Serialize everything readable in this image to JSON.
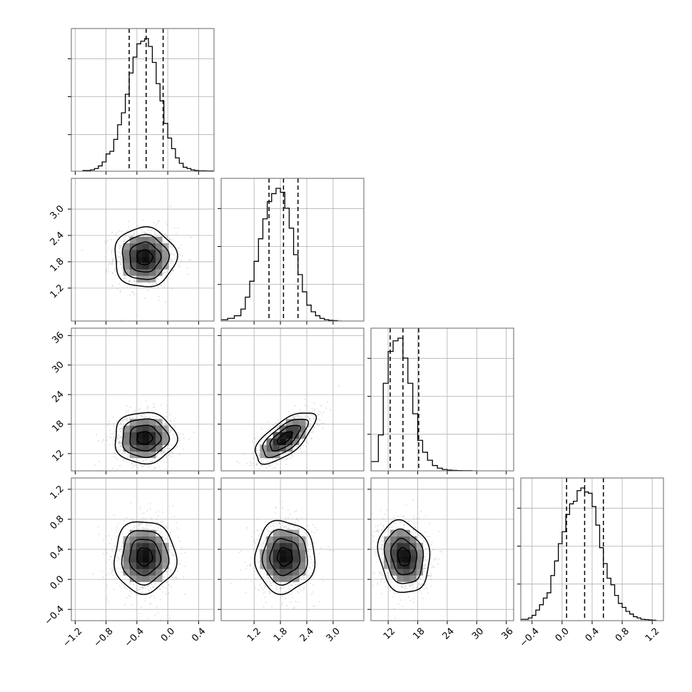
{
  "chart_data": {
    "type": "corner",
    "grid": true,
    "colors": {
      "hist": "#000000",
      "quantile": "#000000",
      "points": "#9a9a9a",
      "frame": "#666666",
      "grid": "#b0b0b0"
    },
    "quantiles": [
      0.16,
      0.5,
      0.84
    ],
    "params": [
      {
        "lim": [
          -1.25,
          0.6
        ],
        "ticks": [
          -1.2,
          -0.8,
          -0.4,
          0.0,
          0.4
        ],
        "tick_labels": [
          "−1.2",
          "−0.8",
          "−0.4",
          "0.0",
          "0.4"
        ],
        "mean": -0.3,
        "sd": 0.2,
        "quantile_values": [
          -0.5,
          -0.28,
          -0.06
        ],
        "hist_edges": [
          -1.1,
          -1.0,
          -0.95,
          -0.9,
          -0.85,
          -0.8,
          -0.75,
          -0.7,
          -0.65,
          -0.6,
          -0.55,
          -0.5,
          -0.45,
          -0.4,
          -0.35,
          -0.3,
          -0.25,
          -0.2,
          -0.15,
          -0.1,
          -0.05,
          0.0,
          0.05,
          0.1,
          0.15,
          0.2,
          0.25,
          0.3,
          0.35,
          0.4,
          0.5,
          0.6
        ],
        "hist_counts": [
          0.005,
          0.01,
          0.02,
          0.04,
          0.07,
          0.13,
          0.15,
          0.24,
          0.35,
          0.44,
          0.58,
          0.74,
          0.86,
          0.96,
          0.98,
          1.0,
          0.94,
          0.82,
          0.66,
          0.53,
          0.36,
          0.25,
          0.17,
          0.1,
          0.06,
          0.03,
          0.02,
          0.01,
          0.005,
          0.003,
          0.002
        ]
      },
      {
        "lim": [
          0.45,
          3.7
        ],
        "ticks": [
          1.2,
          1.8,
          2.4,
          3.0
        ],
        "tick_labels": [
          "1.2",
          "1.8",
          "2.4",
          "3.0"
        ],
        "mean": 1.9,
        "sd": 0.34,
        "quantile_values": [
          1.54,
          1.87,
          2.2
        ],
        "hist_edges": [
          0.45,
          0.6,
          0.75,
          0.9,
          1.0,
          1.1,
          1.2,
          1.3,
          1.4,
          1.5,
          1.6,
          1.7,
          1.8,
          1.9,
          2.0,
          2.1,
          2.2,
          2.3,
          2.4,
          2.5,
          2.6,
          2.7,
          2.8,
          2.9,
          3.0,
          3.1,
          3.2
        ],
        "hist_counts": [
          0.01,
          0.02,
          0.04,
          0.09,
          0.18,
          0.3,
          0.45,
          0.62,
          0.77,
          0.9,
          0.96,
          1.0,
          0.97,
          0.85,
          0.7,
          0.5,
          0.35,
          0.22,
          0.12,
          0.07,
          0.04,
          0.02,
          0.01,
          0.005,
          0.003,
          0.0
        ]
      },
      {
        "lim": [
          8.5,
          37.5
        ],
        "ticks": [
          12,
          18,
          24,
          30,
          36
        ],
        "tick_labels": [
          "12",
          "18",
          "24",
          "30",
          "36"
        ],
        "mean": 15.2,
        "sd": 2.6,
        "quantile_values": [
          12.4,
          15.0,
          18.2
        ],
        "hist_edges": [
          8.5,
          10.0,
          11.0,
          12.0,
          13.0,
          14.0,
          15.0,
          16.0,
          17.0,
          18.0,
          19.0,
          20.0,
          21.0,
          22.0,
          23.0,
          24.0,
          25.0,
          26.0,
          27.0,
          28.0,
          29.0,
          30.0
        ],
        "hist_counts": [
          0.07,
          0.27,
          0.66,
          0.9,
          0.98,
          1.0,
          0.85,
          0.66,
          0.43,
          0.23,
          0.14,
          0.08,
          0.04,
          0.02,
          0.01,
          0.005,
          0.003,
          0.002,
          0.001,
          0.001,
          0.0
        ]
      },
      {
        "lim": [
          -0.55,
          1.35
        ],
        "ticks": [
          -0.4,
          0.0,
          0.4,
          0.8,
          1.2
        ],
        "tick_labels": [
          "−0.4",
          "0.0",
          "0.4",
          "0.8",
          "1.2"
        ],
        "mean": 0.3,
        "sd": 0.24,
        "quantile_values": [
          0.06,
          0.3,
          0.55
        ],
        "hist_edges": [
          -0.55,
          -0.45,
          -0.4,
          -0.35,
          -0.3,
          -0.25,
          -0.2,
          -0.15,
          -0.1,
          -0.05,
          0.0,
          0.05,
          0.1,
          0.15,
          0.2,
          0.25,
          0.3,
          0.35,
          0.4,
          0.45,
          0.5,
          0.55,
          0.6,
          0.65,
          0.7,
          0.75,
          0.8,
          0.85,
          0.9,
          0.95,
          1.0,
          1.05,
          1.1,
          1.15,
          1.2,
          1.25
        ],
        "hist_counts": [
          0.01,
          0.02,
          0.04,
          0.08,
          0.12,
          0.17,
          0.21,
          0.34,
          0.45,
          0.58,
          0.67,
          0.8,
          0.88,
          0.9,
          0.98,
          1.0,
          0.97,
          0.96,
          0.86,
          0.72,
          0.55,
          0.43,
          0.32,
          0.27,
          0.19,
          0.13,
          0.1,
          0.07,
          0.05,
          0.03,
          0.02,
          0.01,
          0.008,
          0.005,
          0.003
        ]
      }
    ],
    "correlations": [
      [
        1.0,
        0.0,
        0.0,
        0.0
      ],
      [
        0.0,
        1.0,
        0.68,
        0.0
      ],
      [
        0.0,
        0.68,
        1.0,
        -0.15
      ],
      [
        0.0,
        0.0,
        -0.15,
        1.0
      ]
    ],
    "contour_levels_sigma": [
      0.5,
      1.0,
      1.5,
      2.0
    ]
  }
}
